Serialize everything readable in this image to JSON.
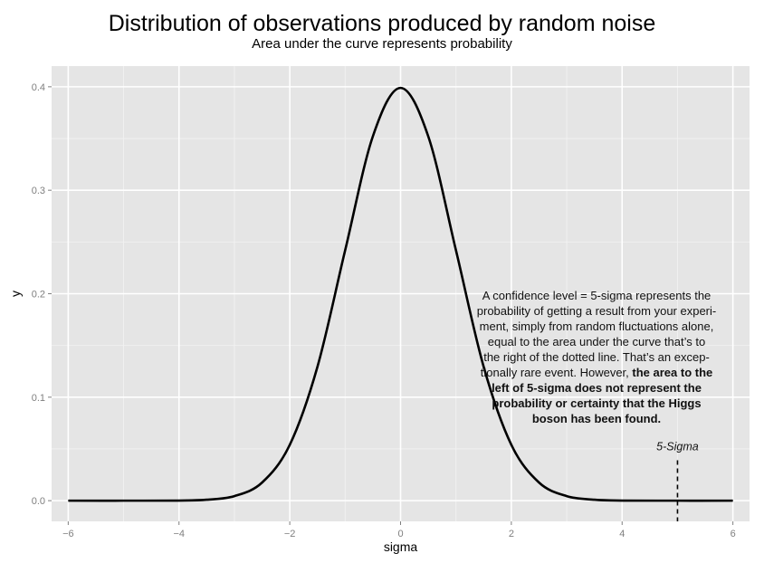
{
  "header": {
    "title": "Distribution of observations produced by random noise",
    "subtitle": "Area under the curve represents probability"
  },
  "chart_data": {
    "type": "line",
    "title": "Distribution of observations produced by random noise",
    "subtitle": "Area under the curve represents probability",
    "xlabel": "sigma",
    "ylabel": "y",
    "xlim": [
      -6.3,
      6.3
    ],
    "ylim": [
      -0.02,
      0.42
    ],
    "x_ticks": [
      -6,
      -4,
      -2,
      0,
      2,
      4,
      6
    ],
    "x_tick_labels": [
      "−6",
      "−4",
      "−2",
      "0",
      "2",
      "4",
      "6"
    ],
    "y_ticks": [
      0.0,
      0.1,
      0.2,
      0.3,
      0.4
    ],
    "y_tick_labels": [
      "0.0",
      "0.1",
      "0.2",
      "0.3",
      "0.4"
    ],
    "grid": true,
    "series": [
      {
        "x": [
          -6,
          -5,
          -4,
          -3.5,
          -3,
          -2.5,
          -2,
          -1.5,
          -1,
          -0.5,
          0,
          0.5,
          1,
          1.5,
          2,
          2.5,
          3,
          3.5,
          4,
          5,
          6
        ],
        "y": [
          0.0,
          0.0,
          0.0001,
          0.0009,
          0.0044,
          0.0175,
          0.054,
          0.1295,
          0.242,
          0.3521,
          0.3989,
          0.3521,
          0.242,
          0.1295,
          0.054,
          0.0175,
          0.0044,
          0.0009,
          0.0001,
          0.0,
          0.0
        ]
      }
    ],
    "vline": {
      "x": 5,
      "y_top": 0.039,
      "style": "dashed",
      "label": "5-Sigma"
    },
    "annotation": {
      "lines": [
        [
          {
            "text": "A confidence level = 5-sigma represents the",
            "bold": false
          }
        ],
        [
          {
            "text": "probability of getting a result from your experi-",
            "bold": false
          }
        ],
        [
          {
            "text": "ment, simply from random fluctuations alone,",
            "bold": false
          }
        ],
        [
          {
            "text": "equal to the area under the curve that’s to",
            "bold": false
          }
        ],
        [
          {
            "text": "the right of the dotted line. That’s an excep-",
            "bold": false
          }
        ],
        [
          {
            "text": "tionally rare event. However, ",
            "bold": false
          },
          {
            "text": "the area to the",
            "bold": true
          }
        ],
        [
          {
            "text": "left of 5-sigma does not represent the",
            "bold": true
          }
        ],
        [
          {
            "text": "probability or certainty that the Higgs",
            "bold": true
          }
        ],
        [
          {
            "text": "boson has been found.",
            "bold": true
          }
        ]
      ]
    }
  }
}
